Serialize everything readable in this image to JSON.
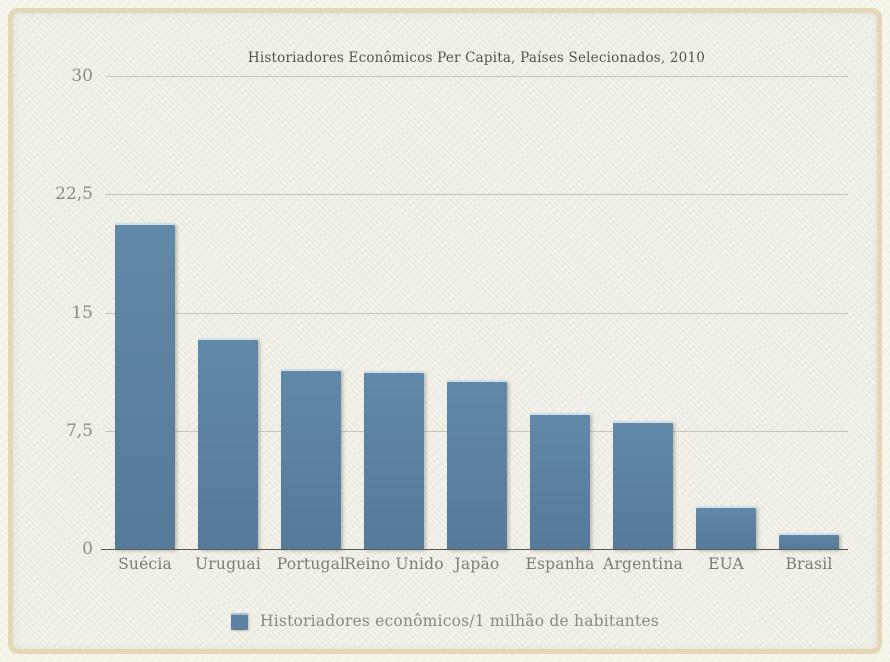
{
  "slide": {
    "background_color": "#f6f4e9",
    "paper_color": "#efeee5",
    "frame_color": "#e3d7b9",
    "bar_color": "#5b80a0"
  },
  "chart_data": {
    "type": "bar",
    "title": "Historiadores Econômicos Per Capita, Países Selecionados, 2010",
    "categories": [
      "Suécia",
      "Uruguai",
      "Portugal",
      "Reino Unido",
      "Japão",
      "Espanha",
      "Argentina",
      "EUA",
      "Brasil"
    ],
    "values": [
      20.7,
      13.4,
      11.4,
      11.3,
      10.7,
      8.6,
      8.1,
      2.7,
      1.0
    ],
    "series_name": "Historiadores econômicos/1 milhão de habitantes",
    "xlabel": "",
    "ylabel": "",
    "ylim": [
      0,
      30
    ],
    "y_tick_labels": [
      "30",
      "22,5",
      "15",
      "7,5",
      "0"
    ],
    "y_tick_values": [
      30,
      22.5,
      15,
      7.5,
      0
    ],
    "grid": true,
    "legend_position": "bottom",
    "bar_color": "#5b80a0"
  },
  "legend": {
    "label": "Historiadores econômicos/1 milhão de habitantes"
  }
}
